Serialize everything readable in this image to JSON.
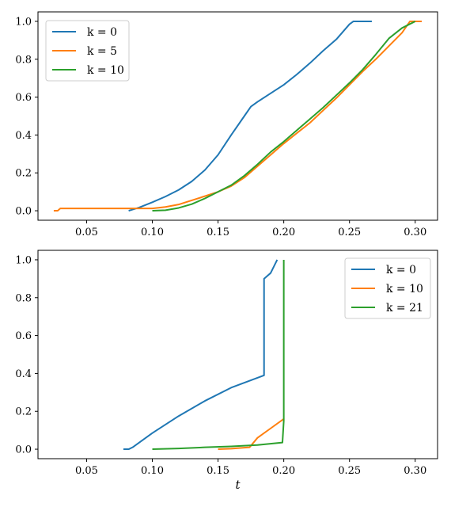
{
  "chart_data": [
    {
      "type": "line",
      "title": "",
      "xlabel": "",
      "ylabel": "",
      "xlim": [
        0.013,
        0.317
      ],
      "ylim": [
        -0.05,
        1.05
      ],
      "xticks": [
        "0.05",
        "0.10",
        "0.15",
        "0.20",
        "0.25",
        "0.30"
      ],
      "yticks": [
        "0.0",
        "0.2",
        "0.4",
        "0.6",
        "0.8",
        "1.0"
      ],
      "legend_position": "top-left",
      "grid": false,
      "series": [
        {
          "name": "k = 0",
          "color": "#1f77b4",
          "x": [
            0.082,
            0.09,
            0.1,
            0.11,
            0.12,
            0.13,
            0.14,
            0.15,
            0.16,
            0.17,
            0.175,
            0.18,
            0.19,
            0.2,
            0.21,
            0.22,
            0.23,
            0.24,
            0.25,
            0.253,
            0.267
          ],
          "y": [
            0.0,
            0.017,
            0.045,
            0.075,
            0.11,
            0.155,
            0.215,
            0.295,
            0.4,
            0.5,
            0.55,
            0.575,
            0.62,
            0.665,
            0.72,
            0.78,
            0.845,
            0.905,
            0.985,
            1.0,
            1.0
          ]
        },
        {
          "name": "k = 5",
          "color": "#ff7f0e",
          "x": [
            0.025,
            0.028,
            0.03,
            0.04,
            0.05,
            0.07,
            0.09,
            0.1,
            0.11,
            0.12,
            0.13,
            0.14,
            0.15,
            0.16,
            0.17,
            0.18,
            0.19,
            0.2,
            0.21,
            0.22,
            0.23,
            0.24,
            0.25,
            0.26,
            0.27,
            0.28,
            0.29,
            0.296,
            0.305
          ],
          "y": [
            0.0,
            0.0,
            0.012,
            0.012,
            0.012,
            0.012,
            0.012,
            0.012,
            0.02,
            0.033,
            0.055,
            0.077,
            0.1,
            0.13,
            0.175,
            0.235,
            0.295,
            0.355,
            0.41,
            0.465,
            0.53,
            0.595,
            0.665,
            0.735,
            0.8,
            0.87,
            0.94,
            1.0,
            1.0
          ]
        },
        {
          "name": "k = 10",
          "color": "#2ca02c",
          "x": [
            0.1,
            0.11,
            0.12,
            0.13,
            0.14,
            0.15,
            0.16,
            0.17,
            0.18,
            0.19,
            0.2,
            0.21,
            0.22,
            0.23,
            0.24,
            0.25,
            0.26,
            0.27,
            0.28,
            0.29,
            0.3
          ],
          "y": [
            0.0,
            0.003,
            0.015,
            0.035,
            0.065,
            0.1,
            0.135,
            0.185,
            0.245,
            0.31,
            0.365,
            0.425,
            0.485,
            0.545,
            0.61,
            0.675,
            0.745,
            0.825,
            0.91,
            0.965,
            1.0
          ]
        }
      ]
    },
    {
      "type": "line",
      "title": "",
      "xlabel": "t",
      "ylabel": "",
      "xlim": [
        0.013,
        0.317
      ],
      "ylim": [
        -0.05,
        1.05
      ],
      "xticks": [
        "0.05",
        "0.10",
        "0.15",
        "0.20",
        "0.25",
        "0.30"
      ],
      "yticks": [
        "0.0",
        "0.2",
        "0.4",
        "0.6",
        "0.8",
        "1.0"
      ],
      "legend_position": "top-right",
      "grid": false,
      "series": [
        {
          "name": "k = 0",
          "color": "#1f77b4",
          "x": [
            0.078,
            0.082,
            0.085,
            0.1,
            0.12,
            0.14,
            0.16,
            0.185,
            0.185,
            0.185,
            0.19,
            0.195
          ],
          "y": [
            0.0,
            0.0,
            0.01,
            0.085,
            0.175,
            0.255,
            0.325,
            0.39,
            0.7,
            0.9,
            0.93,
            1.0
          ]
        },
        {
          "name": "k = 10",
          "color": "#ff7f0e",
          "x": [
            0.15,
            0.16,
            0.174,
            0.18,
            0.19,
            0.2
          ],
          "y": [
            0.0,
            0.003,
            0.01,
            0.06,
            0.11,
            0.16
          ]
        },
        {
          "name": "k = 21",
          "color": "#2ca02c",
          "x": [
            0.1,
            0.12,
            0.14,
            0.16,
            0.18,
            0.199,
            0.2,
            0.2
          ],
          "y": [
            0.0,
            0.004,
            0.01,
            0.015,
            0.022,
            0.035,
            0.15,
            1.0
          ]
        }
      ]
    }
  ]
}
